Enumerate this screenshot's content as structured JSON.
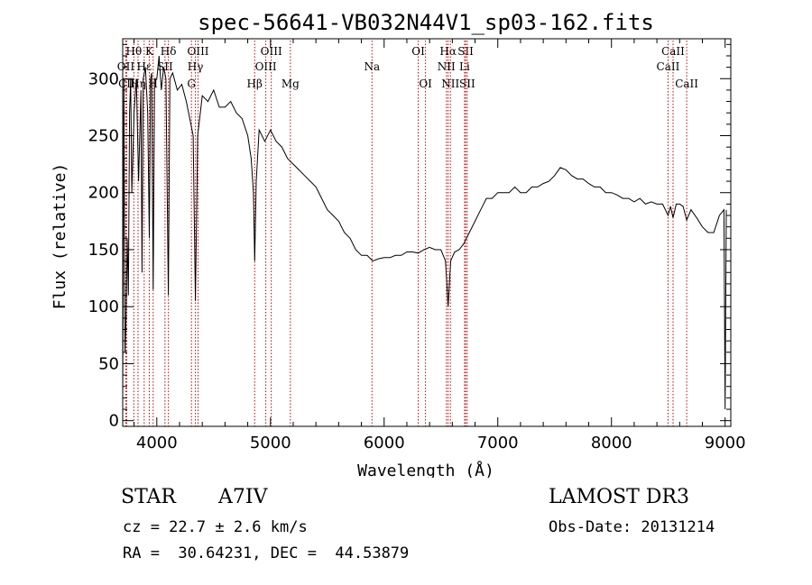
{
  "chart_data": {
    "type": "line",
    "title": "spec-56641-VB032N44V1_sp03-162.fits",
    "xlabel": "Wavelength (Å)",
    "ylabel": "Flux (relative)",
    "xlim": [
      3700,
      9050
    ],
    "ylim": [
      -5,
      335
    ],
    "x_ticks": [
      4000,
      5000,
      6000,
      7000,
      8000,
      9000
    ],
    "y_ticks": [
      0,
      50,
      100,
      150,
      200,
      250,
      300
    ],
    "grid": false,
    "series": [
      {
        "points": [
          [
            3700,
            20
          ],
          [
            3710,
            300
          ],
          [
            3720,
            60
          ],
          [
            3730,
            90
          ],
          [
            3740,
            160
          ],
          [
            3750,
            110
          ],
          [
            3760,
            270
          ],
          [
            3770,
            300
          ],
          [
            3780,
            200
          ],
          [
            3800,
            270
          ],
          [
            3820,
            300
          ],
          [
            3840,
            210
          ],
          [
            3860,
            290
          ],
          [
            3870,
            130
          ],
          [
            3880,
            300
          ],
          [
            3900,
            310
          ],
          [
            3920,
            270
          ],
          [
            3934,
            160
          ],
          [
            3945,
            300
          ],
          [
            3955,
            305
          ],
          [
            3968,
            115
          ],
          [
            3980,
            300
          ],
          [
            4000,
            300
          ],
          [
            4020,
            320
          ],
          [
            4040,
            290
          ],
          [
            4060,
            310
          ],
          [
            4080,
            300
          ],
          [
            4102,
            110
          ],
          [
            4115,
            300
          ],
          [
            4140,
            305
          ],
          [
            4180,
            290
          ],
          [
            4220,
            295
          ],
          [
            4260,
            280
          ],
          [
            4300,
            260
          ],
          [
            4320,
            250
          ],
          [
            4340,
            105
          ],
          [
            4360,
            250
          ],
          [
            4400,
            285
          ],
          [
            4450,
            280
          ],
          [
            4500,
            290
          ],
          [
            4550,
            275
          ],
          [
            4600,
            275
          ],
          [
            4650,
            280
          ],
          [
            4700,
            270
          ],
          [
            4750,
            265
          ],
          [
            4800,
            250
          ],
          [
            4830,
            230
          ],
          [
            4850,
            200
          ],
          [
            4861,
            140
          ],
          [
            4875,
            210
          ],
          [
            4900,
            255
          ],
          [
            4950,
            245
          ],
          [
            5000,
            255
          ],
          [
            5050,
            245
          ],
          [
            5100,
            240
          ],
          [
            5150,
            230
          ],
          [
            5200,
            225
          ],
          [
            5250,
            220
          ],
          [
            5300,
            215
          ],
          [
            5350,
            210
          ],
          [
            5400,
            205
          ],
          [
            5450,
            195
          ],
          [
            5500,
            185
          ],
          [
            5550,
            180
          ],
          [
            5600,
            175
          ],
          [
            5650,
            165
          ],
          [
            5700,
            160
          ],
          [
            5750,
            150
          ],
          [
            5800,
            145
          ],
          [
            5850,
            145
          ],
          [
            5900,
            140
          ],
          [
            5950,
            142
          ],
          [
            6000,
            143
          ],
          [
            6050,
            143
          ],
          [
            6100,
            145
          ],
          [
            6150,
            145
          ],
          [
            6200,
            148
          ],
          [
            6250,
            148
          ],
          [
            6300,
            147
          ],
          [
            6350,
            150
          ],
          [
            6400,
            152
          ],
          [
            6450,
            150
          ],
          [
            6500,
            150
          ],
          [
            6540,
            140
          ],
          [
            6563,
            100
          ],
          [
            6585,
            140
          ],
          [
            6620,
            148
          ],
          [
            6660,
            150
          ],
          [
            6700,
            155
          ],
          [
            6750,
            165
          ],
          [
            6800,
            175
          ],
          [
            6850,
            185
          ],
          [
            6900,
            195
          ],
          [
            6950,
            195
          ],
          [
            7000,
            200
          ],
          [
            7050,
            200
          ],
          [
            7100,
            200
          ],
          [
            7150,
            205
          ],
          [
            7200,
            200
          ],
          [
            7250,
            200
          ],
          [
            7300,
            205
          ],
          [
            7350,
            205
          ],
          [
            7400,
            208
          ],
          [
            7450,
            210
          ],
          [
            7500,
            215
          ],
          [
            7550,
            222
          ],
          [
            7600,
            220
          ],
          [
            7650,
            215
          ],
          [
            7700,
            212
          ],
          [
            7750,
            212
          ],
          [
            7800,
            208
          ],
          [
            7850,
            205
          ],
          [
            7900,
            205
          ],
          [
            7950,
            200
          ],
          [
            8000,
            200
          ],
          [
            8050,
            198
          ],
          [
            8100,
            195
          ],
          [
            8150,
            195
          ],
          [
            8200,
            192
          ],
          [
            8250,
            195
          ],
          [
            8300,
            190
          ],
          [
            8350,
            192
          ],
          [
            8400,
            190
          ],
          [
            8450,
            190
          ],
          [
            8498,
            180
          ],
          [
            8520,
            188
          ],
          [
            8542,
            178
          ],
          [
            8570,
            190
          ],
          [
            8600,
            190
          ],
          [
            8630,
            188
          ],
          [
            8662,
            176
          ],
          [
            8700,
            185
          ],
          [
            8750,
            178
          ],
          [
            8800,
            170
          ],
          [
            8850,
            165
          ],
          [
            8900,
            165
          ],
          [
            8950,
            180
          ],
          [
            8990,
            185
          ],
          [
            9000,
            10
          ],
          [
            9010,
            185
          ]
        ]
      }
    ],
    "lines": [
      {
        "name": "Hθ",
        "wl": 3798,
        "row": 1
      },
      {
        "name": "OII",
        "wl": 3727,
        "row": 2
      },
      {
        "name": "CII",
        "wl": 3735,
        "row": 3
      },
      {
        "name": "Hη",
        "wl": 3835,
        "row": 3
      },
      {
        "name": "Hε",
        "wl": 3889,
        "row": 2
      },
      {
        "name": "K",
        "wl": 3934,
        "row": 1
      },
      {
        "name": "H",
        "wl": 3968,
        "row": 3
      },
      {
        "name": "SII",
        "wl": 4072,
        "row": 2
      },
      {
        "name": "Hδ",
        "wl": 4102,
        "row": 1
      },
      {
        "name": "OIII",
        "wl": 4363,
        "row": 1
      },
      {
        "name": "Hγ",
        "wl": 4340,
        "row": 2
      },
      {
        "name": "G",
        "wl": 4305,
        "row": 3
      },
      {
        "name": "Hβ",
        "wl": 4861,
        "row": 3
      },
      {
        "name": "OIII",
        "wl": 5007,
        "row": 1
      },
      {
        "name": "OIII",
        "wl": 4959,
        "row": 2
      },
      {
        "name": "Mg",
        "wl": 5175,
        "row": 3
      },
      {
        "name": "Na",
        "wl": 5893,
        "row": 2
      },
      {
        "name": "OI",
        "wl": 6300,
        "row": 1
      },
      {
        "name": "OI",
        "wl": 6364,
        "row": 3
      },
      {
        "name": "Hα",
        "wl": 6563,
        "row": 1
      },
      {
        "name": "NII",
        "wl": 6548,
        "row": 2
      },
      {
        "name": "NII",
        "wl": 6583,
        "row": 3
      },
      {
        "name": "SII",
        "wl": 6717,
        "row": 1
      },
      {
        "name": "Li",
        "wl": 6708,
        "row": 2
      },
      {
        "name": "SII",
        "wl": 6731,
        "row": 3
      },
      {
        "name": "CaII",
        "wl": 8542,
        "row": 1
      },
      {
        "name": "CaII",
        "wl": 8498,
        "row": 2
      },
      {
        "name": "CaII",
        "wl": 8662,
        "row": 3
      }
    ]
  },
  "info": {
    "object_type": "STAR",
    "subclass": "A7IV",
    "redshift": "cz = 22.7 ± 2.6 km/s",
    "coords": "RA =  30.64231, DEC =  44.53879",
    "survey": "LAMOST DR3",
    "obs_date": "Obs-Date: 20131214"
  },
  "colors": {
    "spectrum": "#000000",
    "line_markers": "#cc0000"
  }
}
